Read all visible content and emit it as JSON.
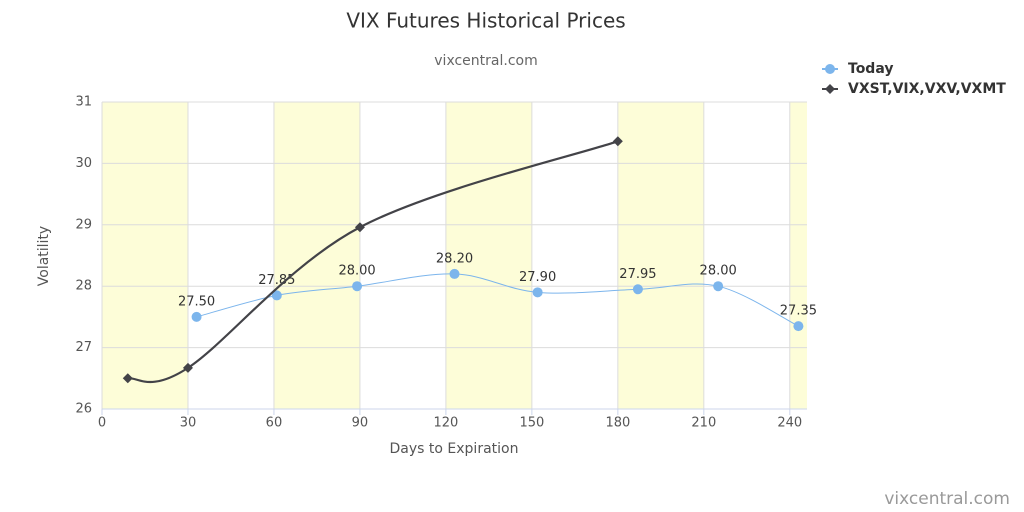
{
  "chart_data": {
    "type": "line",
    "title": "VIX Futures Historical Prices",
    "subtitle": "vixcentral.com",
    "credit": "vixcentral.com",
    "x_label": "Days to Expiration",
    "y_label": "Volatility",
    "xlim": [
      0,
      246
    ],
    "xticks": [
      0,
      30,
      60,
      90,
      120,
      150,
      180,
      210,
      240
    ],
    "ylim": [
      26,
      31
    ],
    "yticks": [
      26,
      27,
      28,
      29,
      30,
      31
    ],
    "grid": true,
    "legend": "top-right",
    "bands": [
      [
        0,
        30
      ],
      [
        60,
        90
      ],
      [
        120,
        150
      ],
      [
        180,
        210
      ],
      [
        240,
        246
      ]
    ],
    "band_color": "#fdfdd8",
    "series": [
      {
        "name": "Today",
        "color": "#7cb5ec",
        "marker": "circle",
        "x": [
          33,
          61,
          89,
          123,
          152,
          187,
          215,
          243
        ],
        "values": [
          27.5,
          27.85,
          28.0,
          28.2,
          27.9,
          27.95,
          28.0,
          27.35
        ],
        "value_labels": [
          "27.50",
          "27.85",
          "28.00",
          "28.20",
          "27.90",
          "27.95",
          "28.00",
          "27.35"
        ]
      },
      {
        "name": "VXST,VIX,VXV,VXMT",
        "color": "#434348",
        "marker": "diamond",
        "x": [
          9,
          30,
          90,
          180
        ],
        "values": [
          26.5,
          26.67,
          28.96,
          30.36
        ]
      }
    ]
  }
}
